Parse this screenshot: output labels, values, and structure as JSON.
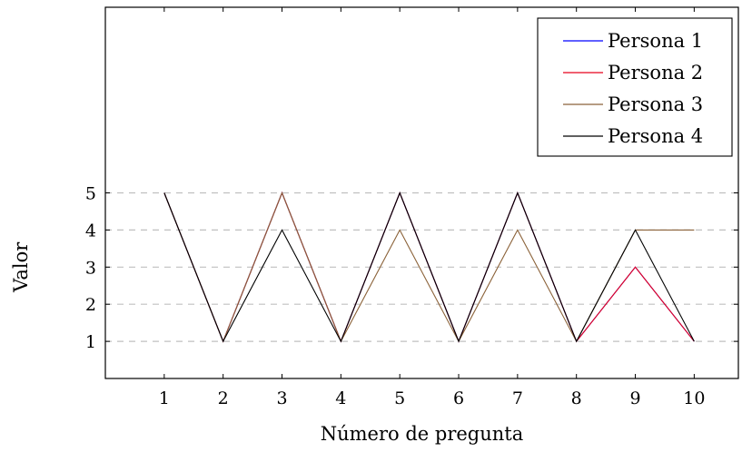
{
  "chart_data": {
    "type": "line",
    "title": "",
    "xlabel": "Número de pregunta",
    "ylabel": "Valor",
    "x": [
      1,
      2,
      3,
      4,
      5,
      6,
      7,
      8,
      9,
      10
    ],
    "xticks": [
      "1",
      "2",
      "3",
      "4",
      "5",
      "6",
      "7",
      "8",
      "9",
      "10"
    ],
    "yticks": [
      "1",
      "2",
      "3",
      "4",
      "5"
    ],
    "xlim": [
      0,
      10.75
    ],
    "ylim": [
      0,
      10
    ],
    "grid": "horizontal dashed at y ticks",
    "legend_position": "top-right",
    "series": [
      {
        "name": "Persona 1",
        "color": "#0000ff",
        "values": [
          5,
          1,
          5,
          1,
          5,
          1,
          5,
          1,
          3,
          1
        ]
      },
      {
        "name": "Persona 2",
        "color": "#e8001c",
        "values": [
          5,
          1,
          5,
          1,
          5,
          1,
          5,
          1,
          3,
          1
        ]
      },
      {
        "name": "Persona 3",
        "color": "#8b6239",
        "values": [
          5,
          1,
          5,
          1,
          4,
          1,
          4,
          1,
          4,
          4
        ]
      },
      {
        "name": "Persona 4",
        "color": "#000000",
        "values": [
          5,
          1,
          4,
          1,
          5,
          1,
          5,
          1,
          4,
          1
        ]
      }
    ]
  }
}
